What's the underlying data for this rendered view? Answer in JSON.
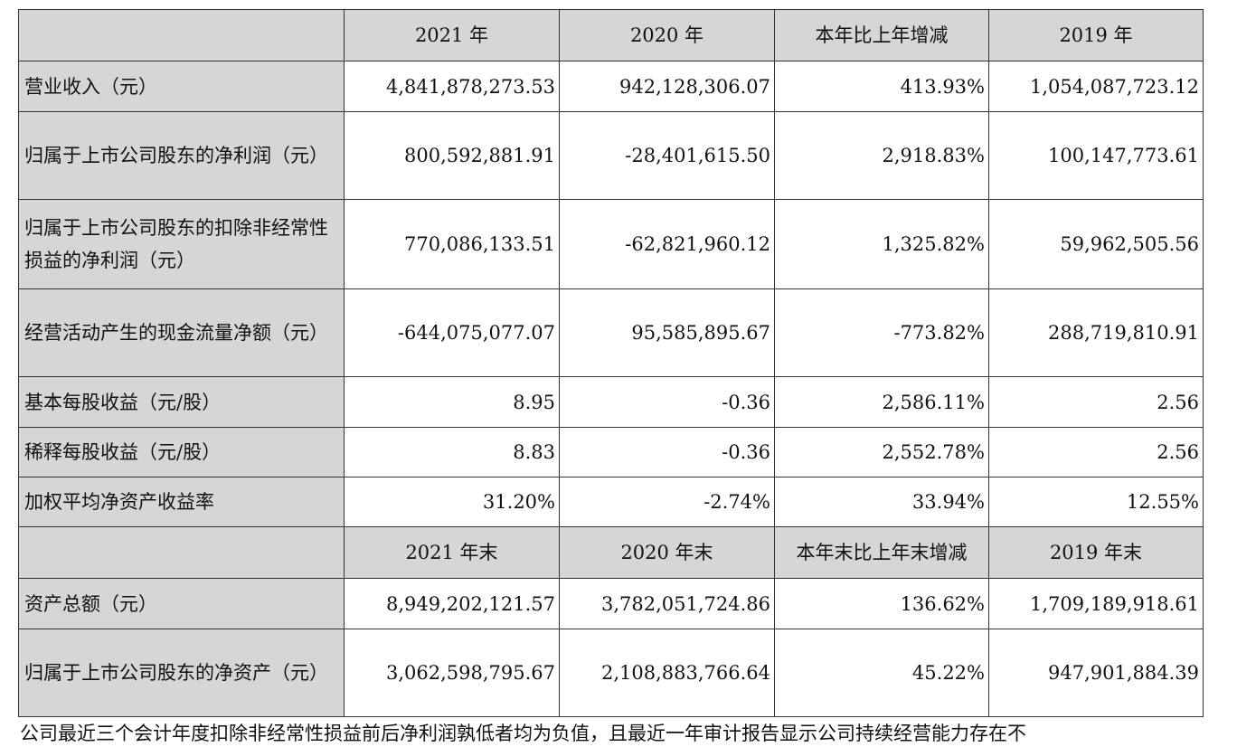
{
  "header1": [
    "",
    "2021 年",
    "2020 年",
    "本年比上年增减",
    "2019 年"
  ],
  "rows1": [
    {
      "label": "营业收入（元）",
      "values": [
        "4,841,878,273.53",
        "942,128,306.07",
        "413.93%",
        "1,054,087,723.12"
      ]
    },
    {
      "label": "归属于上市公司股东的净利润（元）",
      "values": [
        "800,592,881.91",
        "-28,401,615.50",
        "2,918.83%",
        "100,147,773.61"
      ]
    },
    {
      "label": "归属于上市公司股东的扣除非经常性损益的净利润（元）",
      "values": [
        "770,086,133.51",
        "-62,821,960.12",
        "1,325.82%",
        "59,962,505.56"
      ]
    },
    {
      "label": "经营活动产生的现金流量净额（元）",
      "values": [
        "-644,075,077.07",
        "95,585,895.67",
        "-773.82%",
        "288,719,810.91"
      ]
    },
    {
      "label": "基本每股收益（元/股）",
      "values": [
        "8.95",
        "-0.36",
        "2,586.11%",
        "2.56"
      ]
    },
    {
      "label": "稀释每股收益（元/股）",
      "values": [
        "8.83",
        "-0.36",
        "2,552.78%",
        "2.56"
      ]
    },
    {
      "label": "加权平均净资产收益率",
      "values": [
        "31.20%",
        "-2.74%",
        "33.94%",
        "12.55%"
      ]
    }
  ],
  "header2": [
    "",
    "2021 年末",
    "2020 年末",
    "本年末比上年末增减",
    "2019 年末"
  ],
  "rows2": [
    {
      "label": "资产总额（元）",
      "values": [
        "8,949,202,121.57",
        "3,782,051,724.86",
        "136.62%",
        "1,709,189,918.61"
      ]
    },
    {
      "label": "归属于上市公司股东的净资产（元）",
      "values": [
        "3,062,598,795.67",
        "2,108,883,766.64",
        "45.22%",
        "947,901,884.39"
      ]
    }
  ],
  "footer_text": "公司最近三个会计年度扣除非经常性损益前后净利润孰低者均为负值，且最近一年审计报告显示公司持续经营能力存在不"
}
